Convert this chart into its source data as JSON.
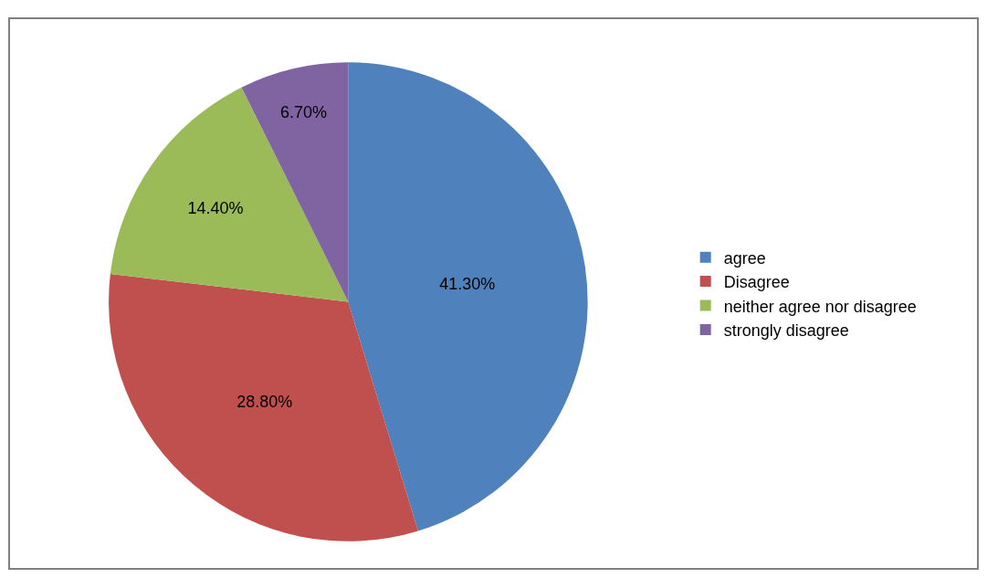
{
  "chart_data": {
    "type": "pie",
    "categories": [
      "agree",
      "Disagree",
      "neither agree nor disagree",
      "strongly disagree"
    ],
    "values": [
      41.3,
      28.8,
      14.4,
      6.7
    ],
    "value_labels": [
      "41.30%",
      "28.80%",
      "14.40%",
      "6.70%"
    ],
    "colors": [
      "#4f81bd",
      "#c0504d",
      "#9bbb59",
      "#8064a2"
    ],
    "legend": "right"
  }
}
